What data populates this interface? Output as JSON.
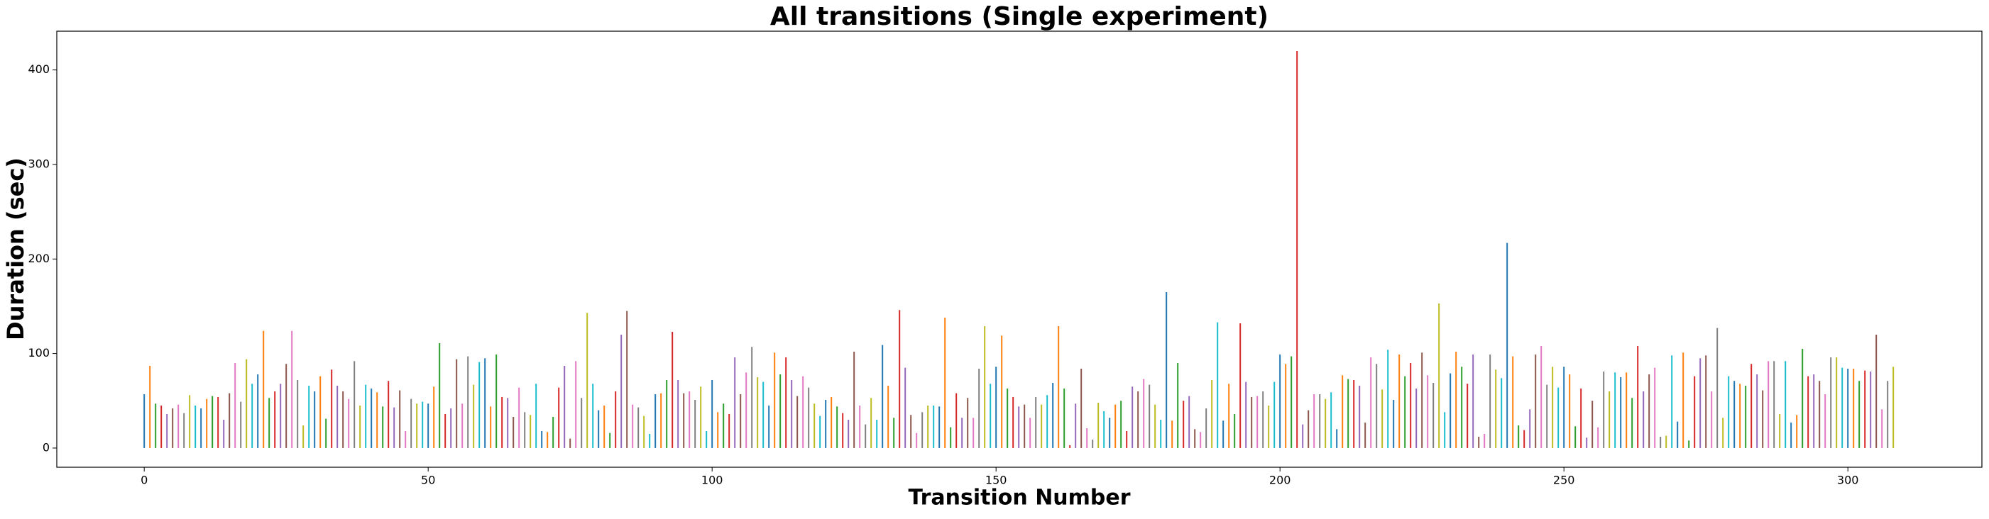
{
  "chart_data": {
    "type": "bar",
    "title": "All transitions (Single experiment)",
    "xlabel": "Transition Number",
    "ylabel": "Duration (sec)",
    "x": [
      0,
      1,
      2,
      3,
      4,
      5,
      6,
      7,
      8,
      9,
      10,
      11,
      12,
      13,
      14,
      15,
      16,
      17,
      18,
      19,
      20,
      21,
      22,
      23,
      24,
      25,
      26,
      27,
      28,
      29,
      30,
      31,
      32,
      33,
      34,
      35,
      36,
      37,
      38,
      39,
      40,
      41,
      42,
      43,
      44,
      45,
      46,
      47,
      48,
      49,
      50,
      51,
      52,
      53,
      54,
      55,
      56,
      57,
      58,
      59,
      60,
      61,
      62,
      63,
      64,
      65,
      66,
      67,
      68,
      69,
      70,
      71,
      72,
      73,
      74,
      75,
      76,
      77,
      78,
      79,
      80,
      81,
      82,
      83,
      84,
      85,
      86,
      87,
      88,
      89,
      90,
      91,
      92,
      93,
      94,
      95,
      96,
      97,
      98,
      99,
      100,
      101,
      102,
      103,
      104,
      105,
      106,
      107,
      108,
      109,
      110,
      111,
      112,
      113,
      114,
      115,
      116,
      117,
      118,
      119,
      120,
      121,
      122,
      123,
      124,
      125,
      126,
      127,
      128,
      129,
      130,
      131,
      132,
      133,
      134,
      135,
      136,
      137,
      138,
      139,
      140,
      141,
      142,
      143,
      144,
      145,
      146,
      147,
      148,
      149,
      150,
      151,
      152,
      153,
      154,
      155,
      156,
      157,
      158,
      159,
      160,
      161,
      162,
      163,
      164,
      165,
      166,
      167,
      168,
      169,
      170,
      171,
      172,
      173,
      174,
      175,
      176,
      177,
      178,
      179,
      180,
      181,
      182,
      183,
      184,
      185,
      186,
      187,
      188,
      189,
      190,
      191,
      192,
      193,
      194,
      195,
      196,
      197,
      198,
      199,
      200,
      201,
      202,
      203,
      204,
      205,
      206,
      207,
      208,
      209,
      210,
      211,
      212,
      213,
      214,
      215,
      216,
      217,
      218,
      219,
      220,
      221,
      222,
      223,
      224,
      225,
      226,
      227,
      228,
      229,
      230,
      231,
      232,
      233,
      234,
      235,
      236,
      237,
      238,
      239,
      240,
      241,
      242,
      243,
      244,
      245,
      246,
      247,
      248,
      249,
      250,
      251,
      252,
      253,
      254,
      255,
      256,
      257,
      258,
      259,
      260,
      261,
      262,
      263,
      264,
      265,
      266,
      267,
      268,
      269,
      270,
      271,
      272,
      273,
      274,
      275,
      276,
      277,
      278,
      279,
      280,
      281,
      282,
      283,
      284,
      285,
      286,
      287,
      288,
      289,
      290,
      291,
      292,
      293,
      294,
      295,
      296,
      297,
      298,
      299,
      300,
      301,
      302,
      303,
      304,
      305,
      306,
      307,
      308
    ],
    "values": [
      57,
      87,
      47,
      45,
      36,
      42,
      46,
      37,
      56,
      45,
      42,
      52,
      55,
      54,
      30,
      58,
      90,
      49,
      94,
      68,
      78,
      124,
      53,
      60,
      68,
      89,
      124,
      72,
      24,
      66,
      60,
      76,
      31,
      83,
      66,
      60,
      52,
      92,
      45,
      67,
      63,
      59,
      44,
      71,
      43,
      61,
      18,
      52,
      47,
      49,
      47,
      65,
      111,
      36,
      42,
      94,
      47,
      97,
      67,
      91,
      95,
      44,
      99,
      54,
      53,
      33,
      64,
      38,
      35,
      68,
      18,
      17,
      33,
      64,
      87,
      10,
      92,
      53,
      143,
      68,
      40,
      45,
      16,
      60,
      120,
      145,
      46,
      43,
      34,
      15,
      57,
      58,
      72,
      123,
      72,
      58,
      60,
      51,
      65,
      18,
      72,
      38,
      47,
      36,
      96,
      57,
      80,
      107,
      75,
      70,
      45,
      101,
      78,
      96,
      72,
      55,
      76,
      64,
      47,
      34,
      51,
      54,
      44,
      37,
      30,
      102,
      45,
      25,
      53,
      30,
      109,
      66,
      32,
      146,
      85,
      35,
      16,
      38,
      45,
      45,
      44,
      138,
      22,
      58,
      32,
      53,
      32,
      84,
      129,
      68,
      86,
      119,
      63,
      54,
      44,
      46,
      32,
      54,
      46,
      56,
      69,
      129,
      63,
      3,
      47,
      84,
      21,
      9,
      48,
      39,
      32,
      46,
      50,
      18,
      65,
      60,
      73,
      67,
      46,
      30,
      165,
      29,
      90,
      50,
      55,
      20,
      17,
      42,
      72,
      133,
      29,
      68,
      36,
      132,
      70,
      54,
      55,
      60,
      45,
      70,
      99,
      89,
      97,
      420,
      25,
      40,
      57,
      57,
      52,
      59,
      20,
      77,
      73,
      72,
      66,
      27,
      96,
      89,
      62,
      104,
      51,
      99,
      76,
      90,
      63,
      101,
      77,
      69,
      153,
      38,
      79,
      102,
      86,
      68,
      99,
      12,
      15,
      99,
      83,
      74,
      217,
      97,
      24,
      19,
      41,
      99,
      108,
      67,
      86,
      64,
      86,
      78,
      23,
      63,
      11,
      50,
      22,
      81,
      60,
      80,
      75,
      80,
      53,
      108,
      60,
      78,
      85,
      12,
      13,
      98,
      28,
      101,
      8,
      76,
      95,
      98,
      60,
      127,
      32,
      76,
      71,
      68,
      66,
      89,
      78,
      61,
      92,
      92,
      36,
      92,
      27,
      35,
      105,
      76,
      78,
      71,
      57,
      96,
      96,
      85,
      84,
      84,
      71,
      82,
      81,
      120,
      41,
      71,
      86
    ],
    "colors": [
      "#1f77b4",
      "#ff7f0e",
      "#2ca02c",
      "#d62728",
      "#9467bd",
      "#8c564b",
      "#e377c2",
      "#7f7f7f",
      "#bcbd22",
      "#17becf"
    ],
    "xlim": [
      -15.4,
      323.6
    ],
    "xticks": [
      0,
      50,
      100,
      150,
      200,
      250,
      300
    ],
    "ylim": [
      -20.3,
      441
    ],
    "yticks": [
      0,
      100,
      200,
      300,
      400
    ],
    "grid": false
  }
}
